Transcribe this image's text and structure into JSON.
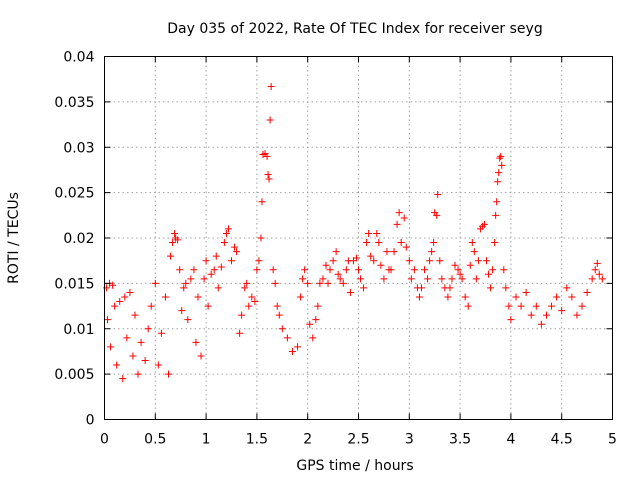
{
  "chart_data": {
    "type": "scatter",
    "title": "Day 035 of 2022, Rate Of TEC Index for receiver seyg",
    "xlabel": "GPS time / hours",
    "ylabel": "ROTI / TECUs",
    "xlim": [
      0,
      5
    ],
    "ylim": [
      0,
      0.04
    ],
    "x_ticks": [
      0,
      0.5,
      1,
      1.5,
      2,
      2.5,
      3,
      3.5,
      4,
      4.5,
      5
    ],
    "x_tick_labels": [
      "0",
      "0.5",
      "1",
      "1.5",
      "2",
      "2.5",
      "3",
      "3.5",
      "4",
      "4.5",
      "5"
    ],
    "y_ticks": [
      0,
      0.005,
      0.01,
      0.015,
      0.02,
      0.025,
      0.03,
      0.035,
      0.04
    ],
    "y_tick_labels": [
      "0",
      "0.005",
      "0.01",
      "0.015",
      "0.02",
      "0.025",
      "0.03",
      "0.035",
      "0.04"
    ],
    "grid": true,
    "marker": "+",
    "color": "#ff0000",
    "series": [
      {
        "name": "",
        "points": [
          [
            0.02,
            0.0145
          ],
          [
            0.05,
            0.015
          ],
          [
            0.08,
            0.0148
          ],
          [
            0.03,
            0.011
          ],
          [
            0.06,
            0.008
          ],
          [
            0.1,
            0.0125
          ],
          [
            0.12,
            0.006
          ],
          [
            0.15,
            0.013
          ],
          [
            0.18,
            0.0045
          ],
          [
            0.2,
            0.0135
          ],
          [
            0.22,
            0.009
          ],
          [
            0.25,
            0.014
          ],
          [
            0.28,
            0.007
          ],
          [
            0.3,
            0.0115
          ],
          [
            0.33,
            0.005
          ],
          [
            0.36,
            0.0085
          ],
          [
            0.4,
            0.0065
          ],
          [
            0.43,
            0.01
          ],
          [
            0.46,
            0.0125
          ],
          [
            0.5,
            0.015
          ],
          [
            0.53,
            0.006
          ],
          [
            0.56,
            0.0095
          ],
          [
            0.6,
            0.0135
          ],
          [
            0.63,
            0.005
          ],
          [
            0.65,
            0.018
          ],
          [
            0.67,
            0.0195
          ],
          [
            0.69,
            0.0205
          ],
          [
            0.7,
            0.02
          ],
          [
            0.72,
            0.0198
          ],
          [
            0.74,
            0.0165
          ],
          [
            0.76,
            0.012
          ],
          [
            0.78,
            0.0145
          ],
          [
            0.8,
            0.015
          ],
          [
            0.82,
            0.011
          ],
          [
            0.85,
            0.0155
          ],
          [
            0.88,
            0.0165
          ],
          [
            0.9,
            0.0085
          ],
          [
            0.92,
            0.0135
          ],
          [
            0.95,
            0.007
          ],
          [
            0.98,
            0.0155
          ],
          [
            1.0,
            0.0175
          ],
          [
            1.02,
            0.0125
          ],
          [
            1.05,
            0.016
          ],
          [
            1.08,
            0.0165
          ],
          [
            1.1,
            0.018
          ],
          [
            1.12,
            0.0145
          ],
          [
            1.15,
            0.0168
          ],
          [
            1.18,
            0.0195
          ],
          [
            1.2,
            0.0205
          ],
          [
            1.22,
            0.021
          ],
          [
            1.25,
            0.0175
          ],
          [
            1.28,
            0.019
          ],
          [
            1.3,
            0.0185
          ],
          [
            1.33,
            0.0095
          ],
          [
            1.35,
            0.0115
          ],
          [
            1.38,
            0.0145
          ],
          [
            1.4,
            0.015
          ],
          [
            1.42,
            0.0125
          ],
          [
            1.45,
            0.0135
          ],
          [
            1.48,
            0.013
          ],
          [
            1.5,
            0.0165
          ],
          [
            1.52,
            0.0175
          ],
          [
            1.54,
            0.02
          ],
          [
            1.55,
            0.024
          ],
          [
            1.56,
            0.0292
          ],
          [
            1.58,
            0.0293
          ],
          [
            1.6,
            0.029
          ],
          [
            1.61,
            0.027
          ],
          [
            1.62,
            0.0265
          ],
          [
            1.63,
            0.033
          ],
          [
            1.64,
            0.0367
          ],
          [
            1.66,
            0.0165
          ],
          [
            1.68,
            0.015
          ],
          [
            1.7,
            0.0125
          ],
          [
            1.72,
            0.0115
          ],
          [
            1.75,
            0.01
          ],
          [
            1.8,
            0.009
          ],
          [
            1.85,
            0.0075
          ],
          [
            1.9,
            0.008
          ],
          [
            1.93,
            0.0135
          ],
          [
            1.95,
            0.0155
          ],
          [
            1.97,
            0.0165
          ],
          [
            2.0,
            0.015
          ],
          [
            2.02,
            0.0105
          ],
          [
            2.05,
            0.009
          ],
          [
            2.08,
            0.011
          ],
          [
            2.1,
            0.0125
          ],
          [
            2.12,
            0.015
          ],
          [
            2.15,
            0.0155
          ],
          [
            2.18,
            0.017
          ],
          [
            2.2,
            0.015
          ],
          [
            2.22,
            0.0165
          ],
          [
            2.25,
            0.0175
          ],
          [
            2.28,
            0.0185
          ],
          [
            2.3,
            0.016
          ],
          [
            2.32,
            0.0155
          ],
          [
            2.35,
            0.015
          ],
          [
            2.38,
            0.0165
          ],
          [
            2.4,
            0.0175
          ],
          [
            2.42,
            0.014
          ],
          [
            2.45,
            0.0175
          ],
          [
            2.48,
            0.0178
          ],
          [
            2.5,
            0.0165
          ],
          [
            2.52,
            0.0155
          ],
          [
            2.55,
            0.0145
          ],
          [
            2.58,
            0.0195
          ],
          [
            2.6,
            0.0205
          ],
          [
            2.62,
            0.018
          ],
          [
            2.65,
            0.0175
          ],
          [
            2.68,
            0.0205
          ],
          [
            2.7,
            0.0195
          ],
          [
            2.72,
            0.017
          ],
          [
            2.75,
            0.0155
          ],
          [
            2.78,
            0.0185
          ],
          [
            2.8,
            0.0165
          ],
          [
            2.82,
            0.0165
          ],
          [
            2.85,
            0.0185
          ],
          [
            2.88,
            0.0215
          ],
          [
            2.9,
            0.0228
          ],
          [
            2.92,
            0.0195
          ],
          [
            2.95,
            0.0222
          ],
          [
            2.97,
            0.019
          ],
          [
            3.0,
            0.0175
          ],
          [
            3.02,
            0.0155
          ],
          [
            3.05,
            0.0165
          ],
          [
            3.08,
            0.0145
          ],
          [
            3.1,
            0.0135
          ],
          [
            3.12,
            0.0145
          ],
          [
            3.15,
            0.0165
          ],
          [
            3.18,
            0.0155
          ],
          [
            3.2,
            0.0175
          ],
          [
            3.22,
            0.0185
          ],
          [
            3.24,
            0.0195
          ],
          [
            3.25,
            0.0228
          ],
          [
            3.27,
            0.0225
          ],
          [
            3.28,
            0.0248
          ],
          [
            3.3,
            0.0175
          ],
          [
            3.32,
            0.0155
          ],
          [
            3.35,
            0.0145
          ],
          [
            3.38,
            0.0135
          ],
          [
            3.4,
            0.0145
          ],
          [
            3.42,
            0.0155
          ],
          [
            3.45,
            0.017
          ],
          [
            3.48,
            0.0165
          ],
          [
            3.5,
            0.016
          ],
          [
            3.52,
            0.0155
          ],
          [
            3.55,
            0.0135
          ],
          [
            3.58,
            0.0125
          ],
          [
            3.6,
            0.017
          ],
          [
            3.62,
            0.0195
          ],
          [
            3.64,
            0.0185
          ],
          [
            3.66,
            0.0155
          ],
          [
            3.68,
            0.0175
          ],
          [
            3.7,
            0.021
          ],
          [
            3.72,
            0.0213
          ],
          [
            3.74,
            0.0215
          ],
          [
            3.76,
            0.0175
          ],
          [
            3.78,
            0.016
          ],
          [
            3.8,
            0.0145
          ],
          [
            3.82,
            0.0165
          ],
          [
            3.84,
            0.0195
          ],
          [
            3.85,
            0.0225
          ],
          [
            3.86,
            0.024
          ],
          [
            3.87,
            0.0262
          ],
          [
            3.88,
            0.0272
          ],
          [
            3.89,
            0.0288
          ],
          [
            3.9,
            0.029
          ],
          [
            3.91,
            0.028
          ],
          [
            3.93,
            0.0165
          ],
          [
            3.95,
            0.0145
          ],
          [
            3.98,
            0.0125
          ],
          [
            4.0,
            0.011
          ],
          [
            4.05,
            0.0135
          ],
          [
            4.1,
            0.0125
          ],
          [
            4.15,
            0.014
          ],
          [
            4.2,
            0.0115
          ],
          [
            4.25,
            0.0125
          ],
          [
            4.3,
            0.0105
          ],
          [
            4.35,
            0.0115
          ],
          [
            4.4,
            0.0125
          ],
          [
            4.45,
            0.0135
          ],
          [
            4.5,
            0.012
          ],
          [
            4.55,
            0.0145
          ],
          [
            4.6,
            0.0135
          ],
          [
            4.65,
            0.0115
          ],
          [
            4.7,
            0.0125
          ],
          [
            4.75,
            0.014
          ],
          [
            4.8,
            0.0155
          ],
          [
            4.83,
            0.0165
          ],
          [
            4.85,
            0.0172
          ],
          [
            4.87,
            0.016
          ],
          [
            4.9,
            0.0155
          ]
        ]
      }
    ]
  }
}
